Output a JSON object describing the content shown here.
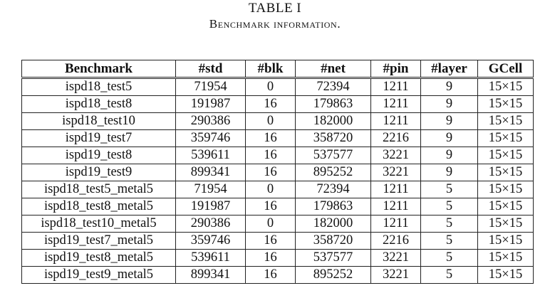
{
  "table": {
    "title": "TABLE I",
    "caption": "Benchmark information.",
    "headers": [
      "Benchmark",
      "#std",
      "#blk",
      "#net",
      "#pin",
      "#layer",
      "GCell"
    ],
    "rows": [
      [
        "ispd18_test5",
        "71954",
        "0",
        "72394",
        "1211",
        "9",
        "15×15"
      ],
      [
        "ispd18_test8",
        "191987",
        "16",
        "179863",
        "1211",
        "9",
        "15×15"
      ],
      [
        "ispd18_test10",
        "290386",
        "0",
        "182000",
        "1211",
        "9",
        "15×15"
      ],
      [
        "ispd19_test7",
        "359746",
        "16",
        "358720",
        "2216",
        "9",
        "15×15"
      ],
      [
        "ispd19_test8",
        "539611",
        "16",
        "537577",
        "3221",
        "9",
        "15×15"
      ],
      [
        "ispd19_test9",
        "899341",
        "16",
        "895252",
        "3221",
        "9",
        "15×15"
      ],
      [
        "ispd18_test5_metal5",
        "71954",
        "0",
        "72394",
        "1211",
        "5",
        "15×15"
      ],
      [
        "ispd18_test8_metal5",
        "191987",
        "16",
        "179863",
        "1211",
        "5",
        "15×15"
      ],
      [
        "ispd18_test10_metal5",
        "290386",
        "0",
        "182000",
        "1211",
        "5",
        "15×15"
      ],
      [
        "ispd19_test7_metal5",
        "359746",
        "16",
        "358720",
        "2216",
        "5",
        "15×15"
      ],
      [
        "ispd19_test8_metal5",
        "539611",
        "16",
        "537577",
        "3221",
        "5",
        "15×15"
      ],
      [
        "ispd19_test9_metal5",
        "899341",
        "16",
        "895252",
        "3221",
        "5",
        "15×15"
      ]
    ]
  }
}
